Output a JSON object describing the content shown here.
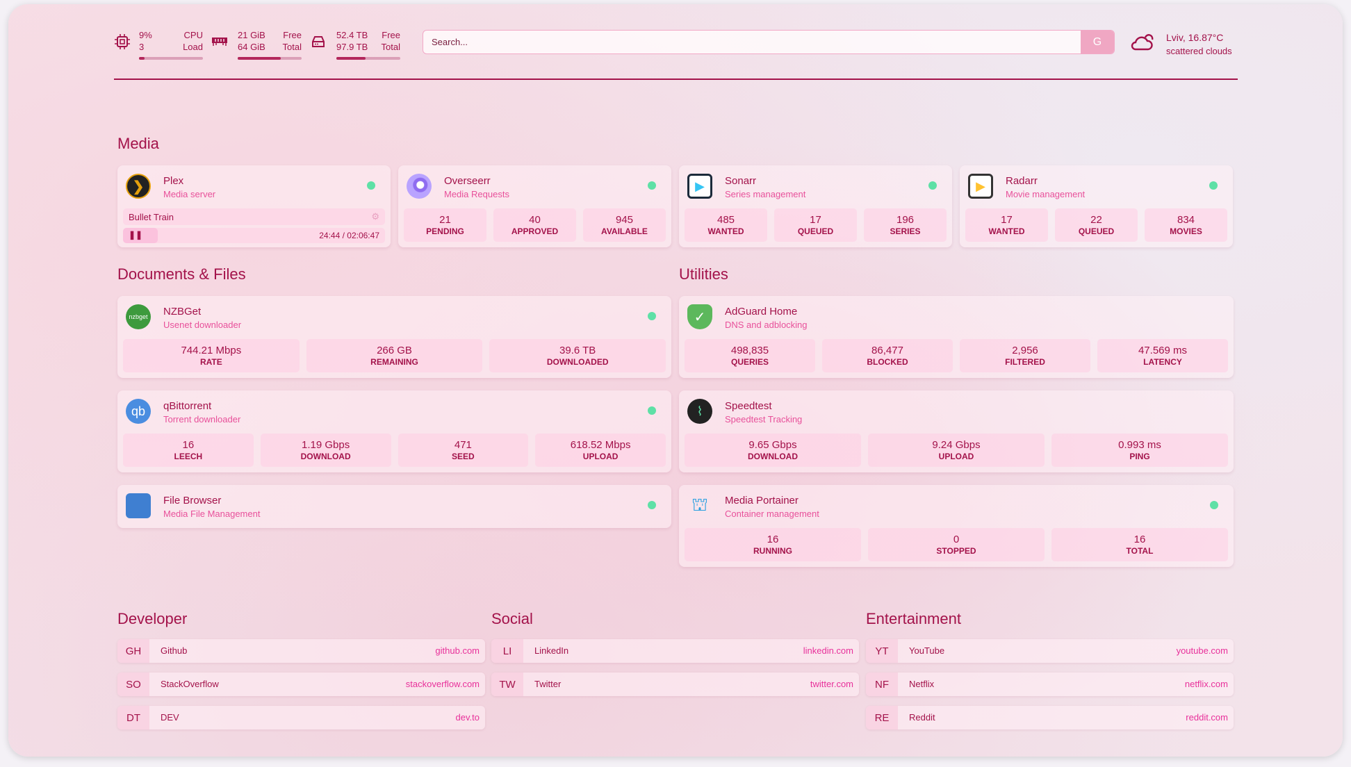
{
  "header": {
    "cpu": {
      "icon": "cpu-icon",
      "value": "9%",
      "sub": "3",
      "label1": "CPU",
      "label2": "Load",
      "percent": 9
    },
    "memory": {
      "icon": "memory-icon",
      "value": "21 GiB",
      "sub": "64 GiB",
      "label1": "Free",
      "label2": "Total",
      "percent": 67
    },
    "disk": {
      "icon": "hard-drive-icon",
      "value": "52.4 TB",
      "sub": "97.9 TB",
      "label1": "Free",
      "label2": "Total",
      "percent": 46
    },
    "search": {
      "placeholder": "Search...",
      "button": "G"
    },
    "weather": {
      "icon": "partly-cloudy-icon",
      "location": "Lviv, 16.87°C",
      "condition": "scattered clouds"
    }
  },
  "colors": {
    "accent": "#a3124a",
    "subtitle": "#e8509a",
    "status_ok": "#5ee0a6"
  },
  "sections": {
    "media": "Media",
    "documents": "Documents & Files",
    "utilities": "Utilities",
    "developer": "Developer",
    "social": "Social",
    "entertainment": "Entertainment"
  },
  "plex": {
    "name": "Plex",
    "desc": "Media server",
    "title": "Bullet Train",
    "time": "24:44 / 02:06:47",
    "state": "paused"
  },
  "media": [
    {
      "name": "Overseerr",
      "desc": "Media Requests",
      "icon": "overseerr-icon",
      "stats": [
        {
          "v": "21",
          "l": "PENDING"
        },
        {
          "v": "40",
          "l": "APPROVED"
        },
        {
          "v": "945",
          "l": "AVAILABLE"
        }
      ]
    },
    {
      "name": "Sonarr",
      "desc": "Series management",
      "icon": "sonarr-icon",
      "stats": [
        {
          "v": "485",
          "l": "WANTED"
        },
        {
          "v": "17",
          "l": "QUEUED"
        },
        {
          "v": "196",
          "l": "SERIES"
        }
      ]
    },
    {
      "name": "Radarr",
      "desc": "Movie management",
      "icon": "radarr-icon",
      "stats": [
        {
          "v": "17",
          "l": "WANTED"
        },
        {
          "v": "22",
          "l": "QUEUED"
        },
        {
          "v": "834",
          "l": "MOVIES"
        }
      ]
    }
  ],
  "documents": [
    {
      "name": "NZBGet",
      "desc": "Usenet downloader",
      "icon": "nzbget-icon",
      "glyph": "nzbget",
      "status": true,
      "stats": [
        {
          "v": "744.21 Mbps",
          "l": "RATE"
        },
        {
          "v": "266 GB",
          "l": "REMAINING"
        },
        {
          "v": "39.6 TB",
          "l": "DOWNLOADED"
        }
      ]
    },
    {
      "name": "qBittorrent",
      "desc": "Torrent downloader",
      "icon": "qbittorrent-icon",
      "glyph": "qb",
      "status": true,
      "stats": [
        {
          "v": "16",
          "l": "LEECH"
        },
        {
          "v": "1.19 Gbps",
          "l": "DOWNLOAD"
        },
        {
          "v": "471",
          "l": "SEED"
        },
        {
          "v": "618.52 Mbps",
          "l": "UPLOAD"
        }
      ]
    },
    {
      "name": "File Browser",
      "desc": "Media File Management",
      "icon": "file-browser-icon",
      "glyph": "",
      "status": true,
      "stats": []
    }
  ],
  "utilities": [
    {
      "name": "AdGuard Home",
      "desc": "DNS and adblocking",
      "icon": "adguard-shield-icon",
      "glyph": "✓",
      "status": false,
      "stats": [
        {
          "v": "498,835",
          "l": "QUERIES"
        },
        {
          "v": "86,477",
          "l": "BLOCKED"
        },
        {
          "v": "2,956",
          "l": "FILTERED"
        },
        {
          "v": "47.569 ms",
          "l": "LATENCY"
        }
      ]
    },
    {
      "name": "Speedtest",
      "desc": "Speedtest Tracking",
      "icon": "speedtest-icon",
      "glyph": "⌇",
      "status": false,
      "stats": [
        {
          "v": "9.65 Gbps",
          "l": "DOWNLOAD"
        },
        {
          "v": "9.24 Gbps",
          "l": "UPLOAD"
        },
        {
          "v": "0.993 ms",
          "l": "PING"
        }
      ]
    },
    {
      "name": "Media Portainer",
      "desc": "Container management",
      "icon": "portainer-icon",
      "glyph": "⛫",
      "status": true,
      "stats": [
        {
          "v": "16",
          "l": "RUNNING"
        },
        {
          "v": "0",
          "l": "STOPPED"
        },
        {
          "v": "16",
          "l": "TOTAL"
        }
      ]
    }
  ],
  "bookmarks": {
    "developer": [
      {
        "abbr": "GH",
        "name": "Github",
        "url": "github.com"
      },
      {
        "abbr": "SO",
        "name": "StackOverflow",
        "url": "stackoverflow.com"
      },
      {
        "abbr": "DT",
        "name": "DEV",
        "url": "dev.to"
      }
    ],
    "social": [
      {
        "abbr": "LI",
        "name": "LinkedIn",
        "url": "linkedin.com"
      },
      {
        "abbr": "TW",
        "name": "Twitter",
        "url": "twitter.com"
      }
    ],
    "entertainment": [
      {
        "abbr": "YT",
        "name": "YouTube",
        "url": "youtube.com"
      },
      {
        "abbr": "NF",
        "name": "Netflix",
        "url": "netflix.com"
      },
      {
        "abbr": "RE",
        "name": "Reddit",
        "url": "reddit.com"
      }
    ]
  }
}
